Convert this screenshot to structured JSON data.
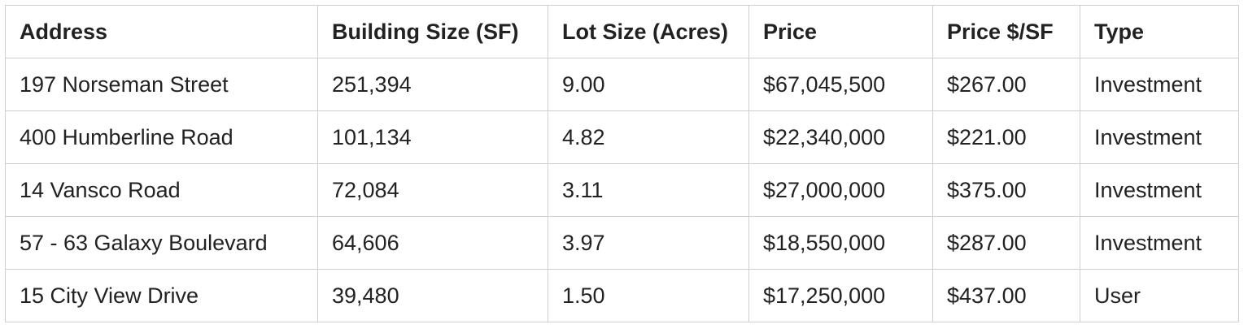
{
  "table": {
    "columns": [
      "Address",
      "Building Size (SF)",
      "Lot Size (Acres)",
      "Price",
      "Price $/SF",
      "Type"
    ],
    "rows": [
      [
        "197 Norseman Street",
        "251,394",
        "9.00",
        "$67,045,500",
        "$267.00",
        "Investment"
      ],
      [
        "400 Humberline Road",
        "101,134",
        "4.82",
        "$22,340,000",
        "$221.00",
        "Investment"
      ],
      [
        "14 Vansco Road",
        "72,084",
        "3.11",
        "$27,000,000",
        "$375.00",
        "Investment"
      ],
      [
        "57 - 63 Galaxy Boulevard",
        "64,606",
        "3.97",
        "$18,550,000",
        "$287.00",
        "Investment"
      ],
      [
        "15 City View Drive",
        "39,480",
        "1.50",
        "$17,250,000",
        "$437.00",
        "User"
      ]
    ]
  }
}
